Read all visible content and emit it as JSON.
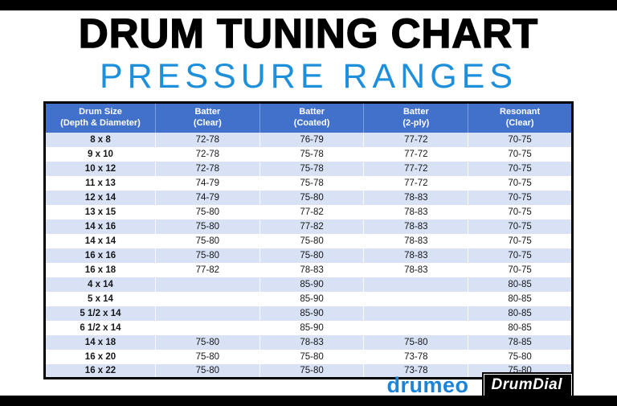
{
  "title": "DRUM TUNING CHART",
  "subtitle": "PRESSURE RANGES",
  "colors": {
    "accent_blue": "#1e8fdb",
    "header_blue": "#4271cc",
    "row_tint": "#d8e2f4",
    "edge_bar": "#000000"
  },
  "footer": {
    "drumeo_label": "drumeo",
    "drumdial_label": "DrumDial"
  },
  "chart_data": {
    "type": "table",
    "title": "DRUM TUNING CHART",
    "subtitle": "PRESSURE RANGES",
    "columns": [
      {
        "line1": "Drum Size",
        "line2": "(Depth & Diameter)"
      },
      {
        "line1": "Batter",
        "line2": "(Clear)"
      },
      {
        "line1": "Batter",
        "line2": "(Coated)"
      },
      {
        "line1": "Batter",
        "line2": "(2-ply)"
      },
      {
        "line1": "Resonant",
        "line2": "(Clear)"
      }
    ],
    "rows": [
      {
        "size": "8 x 8",
        "values": [
          "72-78",
          "76-79",
          "77-72",
          "70-75"
        ]
      },
      {
        "size": "9 x 10",
        "values": [
          "72-78",
          "75-78",
          "77-72",
          "70-75"
        ]
      },
      {
        "size": "10 x 12",
        "values": [
          "72-78",
          "75-78",
          "77-72",
          "70-75"
        ]
      },
      {
        "size": "11 x 13",
        "values": [
          "74-79",
          "75-78",
          "77-72",
          "70-75"
        ]
      },
      {
        "size": "12 x 14",
        "values": [
          "74-79",
          "75-80",
          "78-83",
          "70-75"
        ]
      },
      {
        "size": "13 x 15",
        "values": [
          "75-80",
          "77-82",
          "78-83",
          "70-75"
        ]
      },
      {
        "size": "14 x 16",
        "values": [
          "75-80",
          "77-82",
          "78-83",
          "70-75"
        ]
      },
      {
        "size": "14 x 14",
        "values": [
          "75-80",
          "75-80",
          "78-83",
          "70-75"
        ]
      },
      {
        "size": "16 x 16",
        "values": [
          "75-80",
          "75-80",
          "78-83",
          "70-75"
        ]
      },
      {
        "size": "16 x 18",
        "values": [
          "77-82",
          "78-83",
          "78-83",
          "70-75"
        ]
      },
      {
        "size": "4 x 14",
        "values": [
          "",
          "85-90",
          "",
          "80-85"
        ]
      },
      {
        "size": "5 x 14",
        "values": [
          "",
          "85-90",
          "",
          "80-85"
        ]
      },
      {
        "size": "5 1/2 x 14",
        "values": [
          "",
          "85-90",
          "",
          "80-85"
        ]
      },
      {
        "size": "6 1/2 x 14",
        "values": [
          "",
          "85-90",
          "",
          "80-85"
        ]
      },
      {
        "size": "14 x 18",
        "values": [
          "75-80",
          "78-83",
          "75-80",
          "78-85"
        ]
      },
      {
        "size": "16 x 20",
        "values": [
          "75-80",
          "75-80",
          "73-78",
          "75-80"
        ]
      },
      {
        "size": "16 x 22",
        "values": [
          "75-80",
          "75-80",
          "73-78",
          "75-80"
        ]
      }
    ]
  }
}
